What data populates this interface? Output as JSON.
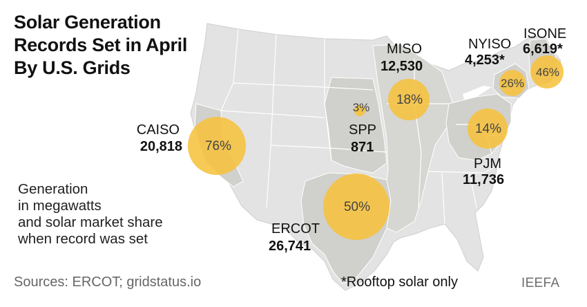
{
  "title": "Solar Generation Records Set in April By U.S. Grids",
  "legend": {
    "line1": "Generation",
    "line2": "in megawatts",
    "line3": "and solar market share",
    "line4": "when record was set"
  },
  "grids": [
    {
      "name": "CAISO",
      "generation": "20,818",
      "share": "76%",
      "share_value": 76
    },
    {
      "name": "ERCOT",
      "generation": "26,741",
      "share": "50%",
      "share_value": 50
    },
    {
      "name": "SPP",
      "generation": "871",
      "share": "3%",
      "share_value": 3
    },
    {
      "name": "MISO",
      "generation": "12,530",
      "share": "18%",
      "share_value": 18
    },
    {
      "name": "PJM",
      "generation": "11,736",
      "share": "14%",
      "share_value": 14
    },
    {
      "name": "NYISO",
      "generation": "4,253*",
      "share": "26%",
      "share_value": 26
    },
    {
      "name": "ISONE",
      "generation": "6,619*",
      "share": "46%",
      "share_value": 46
    }
  ],
  "sources": "Sources: ERCOT; gridstatus.io",
  "footnote": "*Rooftop solar only",
  "brand": "IEEFA",
  "colors": {
    "bubble": "#f6c23e",
    "land": "#e3e3e3",
    "grid_region": "#d0d0cc",
    "border": "#ffffff"
  }
}
